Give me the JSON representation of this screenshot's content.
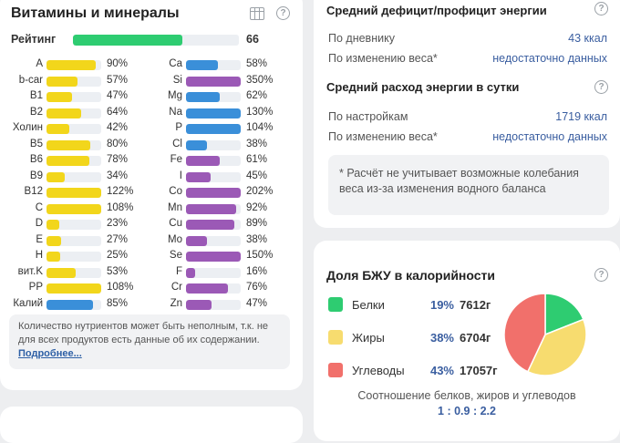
{
  "vitamins": {
    "title": "Витамины и минералы",
    "rating_label": "Рейтинг",
    "rating_value": "66",
    "rating_fraction": 0.66,
    "rating_color": "#2ecc71",
    "left_items": [
      {
        "name": "A",
        "pct": "90%",
        "fraction": 0.9,
        "color": "#f2d61b"
      },
      {
        "name": "b-car",
        "pct": "57%",
        "fraction": 0.57,
        "color": "#f2d61b"
      },
      {
        "name": "B1",
        "pct": "47%",
        "fraction": 0.47,
        "color": "#f2d61b"
      },
      {
        "name": "B2",
        "pct": "64%",
        "fraction": 0.64,
        "color": "#f2d61b"
      },
      {
        "name": "Холин",
        "pct": "42%",
        "fraction": 0.42,
        "color": "#f2d61b"
      },
      {
        "name": "B5",
        "pct": "80%",
        "fraction": 0.8,
        "color": "#f2d61b"
      },
      {
        "name": "B6",
        "pct": "78%",
        "fraction": 0.78,
        "color": "#f2d61b"
      },
      {
        "name": "B9",
        "pct": "34%",
        "fraction": 0.34,
        "color": "#f2d61b"
      },
      {
        "name": "B12",
        "pct": "122%",
        "fraction": 1.0,
        "color": "#f2d61b"
      },
      {
        "name": "C",
        "pct": "108%",
        "fraction": 1.0,
        "color": "#f2d61b"
      },
      {
        "name": "D",
        "pct": "23%",
        "fraction": 0.23,
        "color": "#f2d61b"
      },
      {
        "name": "E",
        "pct": "27%",
        "fraction": 0.27,
        "color": "#f2d61b"
      },
      {
        "name": "H",
        "pct": "25%",
        "fraction": 0.25,
        "color": "#f2d61b"
      },
      {
        "name": "вит.K",
        "pct": "53%",
        "fraction": 0.53,
        "color": "#f2d61b"
      },
      {
        "name": "PP",
        "pct": "108%",
        "fraction": 1.0,
        "color": "#f2d61b"
      },
      {
        "name": "Калий",
        "pct": "85%",
        "fraction": 0.85,
        "color": "#3a8fd9"
      }
    ],
    "right_items": [
      {
        "name": "Ca",
        "pct": "58%",
        "fraction": 0.58,
        "color": "#3a8fd9"
      },
      {
        "name": "Si",
        "pct": "350%",
        "fraction": 1.0,
        "color": "#9b59b6"
      },
      {
        "name": "Mg",
        "pct": "62%",
        "fraction": 0.62,
        "color": "#3a8fd9"
      },
      {
        "name": "Na",
        "pct": "130%",
        "fraction": 1.0,
        "color": "#3a8fd9"
      },
      {
        "name": "P",
        "pct": "104%",
        "fraction": 1.0,
        "color": "#3a8fd9"
      },
      {
        "name": "Cl",
        "pct": "38%",
        "fraction": 0.38,
        "color": "#3a8fd9"
      },
      {
        "name": "Fe",
        "pct": "61%",
        "fraction": 0.61,
        "color": "#9b59b6"
      },
      {
        "name": "I",
        "pct": "45%",
        "fraction": 0.45,
        "color": "#9b59b6"
      },
      {
        "name": "Co",
        "pct": "202%",
        "fraction": 1.0,
        "color": "#9b59b6"
      },
      {
        "name": "Mn",
        "pct": "92%",
        "fraction": 0.92,
        "color": "#9b59b6"
      },
      {
        "name": "Cu",
        "pct": "89%",
        "fraction": 0.89,
        "color": "#9b59b6"
      },
      {
        "name": "Mo",
        "pct": "38%",
        "fraction": 0.38,
        "color": "#9b59b6"
      },
      {
        "name": "Se",
        "pct": "150%",
        "fraction": 1.0,
        "color": "#9b59b6"
      },
      {
        "name": "F",
        "pct": "16%",
        "fraction": 0.16,
        "color": "#9b59b6"
      },
      {
        "name": "Cr",
        "pct": "76%",
        "fraction": 0.76,
        "color": "#9b59b6"
      },
      {
        "name": "Zn",
        "pct": "47%",
        "fraction": 0.47,
        "color": "#9b59b6"
      }
    ],
    "note_text": "Количество нутриентов может быть неполным, т.к. не для всех продуктов есть данные об их содержании.",
    "note_link": "Подробнее..."
  },
  "energy": {
    "deficit_title": "Средний дефицит/профицит энергии",
    "diary_label": "По дневнику",
    "diary_value": "43 ккал",
    "weight_label": "По изменению веса*",
    "weight_value": "недостаточно данных",
    "expense_title": "Средний расход энергии в сутки",
    "settings_label": "По настройкам",
    "settings_value": "1719 ккал",
    "weight2_label": "По изменению веса*",
    "weight2_value": "недостаточно данных",
    "footnote": "* Расчёт не учитывает возможные колебания веса из-за изменения водного баланса"
  },
  "macros": {
    "title": "Доля БЖУ в калорийности",
    "items": [
      {
        "name": "Белки",
        "pct": "19%",
        "grams": "7612г",
        "value": 19,
        "color": "#2ecc71"
      },
      {
        "name": "Жиры",
        "pct": "38%",
        "grams": "6704г",
        "value": 38,
        "color": "#f7dc6f"
      },
      {
        "name": "Углеводы",
        "pct": "43%",
        "grams": "17057г",
        "value": 43,
        "color": "#f1706b"
      }
    ],
    "ratio_label": "Соотношение белков, жиров и углеводов",
    "ratio_value": "1 : 0.9 : 2.2"
  }
}
